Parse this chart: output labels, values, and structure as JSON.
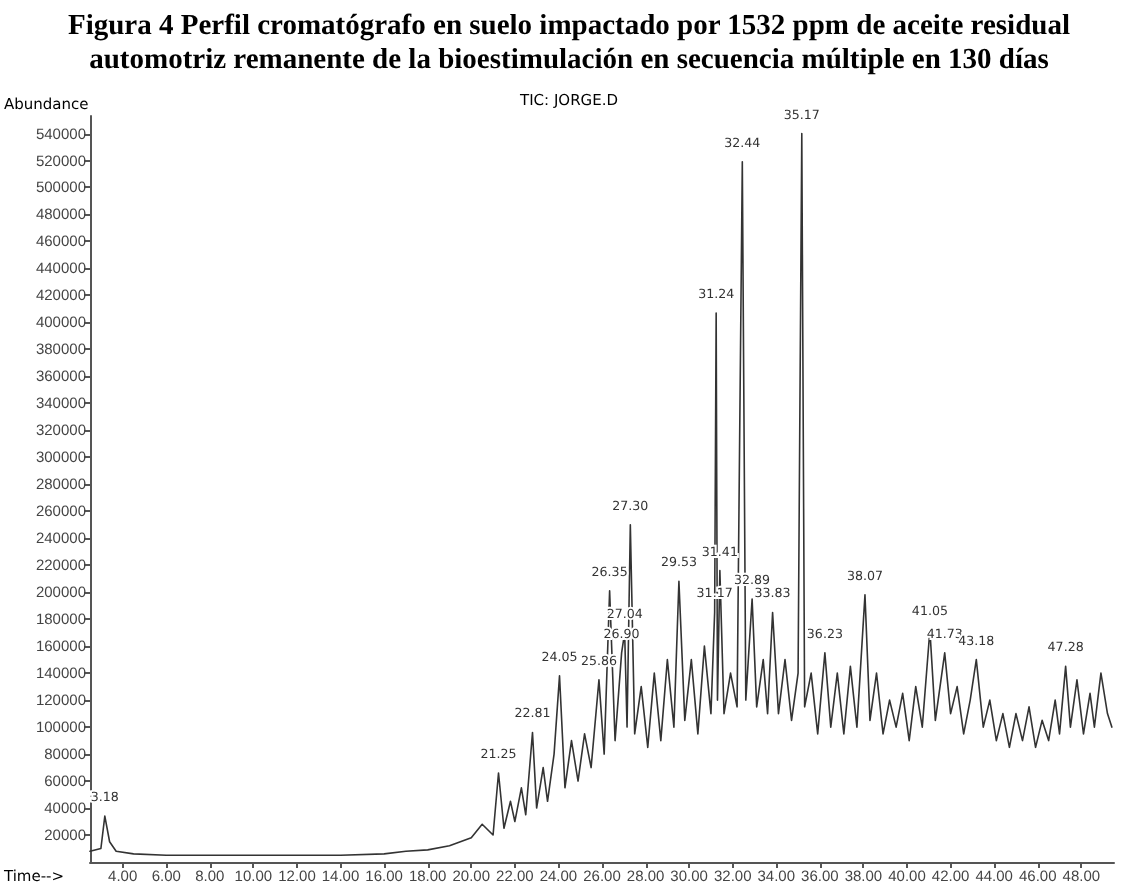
{
  "chart_data": {
    "type": "line",
    "title": "Figura 4 Perfil cromatógrafo en suelo impactado por 1532 ppm de aceite residual automotriz remanente de la bioestimulación en secuencia múltiple en 130 días",
    "xlabel": "Time-->",
    "ylabel": "Abundance",
    "x": [
      2.5,
      3.0,
      3.18,
      3.4,
      3.7,
      4.5,
      6,
      8,
      10,
      12,
      14,
      16,
      17,
      18,
      19,
      19.5,
      20,
      20.5,
      21,
      21.25,
      21.5,
      21.8,
      22.0,
      22.3,
      22.5,
      22.81,
      23.0,
      23.3,
      23.5,
      23.8,
      24.05,
      24.3,
      24.6,
      24.9,
      25.2,
      25.5,
      25.86,
      26.1,
      26.35,
      26.6,
      26.9,
      27.04,
      27.15,
      27.3,
      27.5,
      27.8,
      28.1,
      28.4,
      28.7,
      29.0,
      29.3,
      29.53,
      29.8,
      30.1,
      30.4,
      30.7,
      31.0,
      31.17,
      31.24,
      31.3,
      31.41,
      31.6,
      31.9,
      32.2,
      32.44,
      32.6,
      32.89,
      33.1,
      33.4,
      33.6,
      33.83,
      34.1,
      34.4,
      34.7,
      35.0,
      35.17,
      35.3,
      35.6,
      35.9,
      36.23,
      36.5,
      36.8,
      37.1,
      37.4,
      37.7,
      38.07,
      38.3,
      38.6,
      38.9,
      39.2,
      39.5,
      39.8,
      40.1,
      40.4,
      40.7,
      41.05,
      41.3,
      41.73,
      42.0,
      42.3,
      42.6,
      42.9,
      43.18,
      43.5,
      43.8,
      44.1,
      44.4,
      44.7,
      45.0,
      45.3,
      45.6,
      45.9,
      46.2,
      46.5,
      46.8,
      47.0,
      47.28,
      47.5,
      47.8,
      48.1,
      48.4,
      48.6,
      48.9,
      49.2,
      49.4
    ],
    "series": [
      {
        "color": "#333333",
        "values": [
          8000,
          10000,
          34000,
          15000,
          8000,
          6000,
          5000,
          5000,
          5000,
          5000,
          5000,
          6000,
          8000,
          9000,
          12000,
          15000,
          18000,
          28000,
          20000,
          66000,
          25000,
          45000,
          30000,
          55000,
          35000,
          96000,
          40000,
          70000,
          45000,
          80000,
          138000,
          55000,
          90000,
          60000,
          95000,
          70000,
          135000,
          80000,
          201000,
          90000,
          155000,
          170000,
          100000,
          250000,
          95000,
          130000,
          85000,
          140000,
          90000,
          150000,
          100000,
          208000,
          105000,
          150000,
          95000,
          160000,
          110000,
          185000,
          407000,
          120000,
          216000,
          110000,
          140000,
          115000,
          519000,
          120000,
          195000,
          115000,
          150000,
          110000,
          185000,
          110000,
          150000,
          105000,
          140000,
          540000,
          115000,
          140000,
          95000,
          155000,
          100000,
          140000,
          95000,
          145000,
          100000,
          198000,
          105000,
          140000,
          95000,
          120000,
          100000,
          125000,
          90000,
          130000,
          100000,
          172000,
          105000,
          155000,
          110000,
          130000,
          95000,
          120000,
          150000,
          100000,
          120000,
          90000,
          110000,
          85000,
          110000,
          90000,
          115000,
          85000,
          105000,
          90000,
          120000,
          95000,
          145000,
          100000,
          135000,
          95000,
          125000,
          100000,
          140000,
          110000,
          100000
        ]
      }
    ],
    "xlim": [
      2.5,
      49.5
    ],
    "xticks": [
      {
        "value": 4,
        "label": "4.00"
      },
      {
        "value": 6,
        "label": "6.00"
      },
      {
        "value": 8,
        "label": "8.00"
      },
      {
        "value": 10,
        "label": "10.00"
      },
      {
        "value": 12,
        "label": "12.00"
      },
      {
        "value": 14,
        "label": "14.00"
      },
      {
        "value": 16,
        "label": "16.00"
      },
      {
        "value": 18,
        "label": "18.00"
      },
      {
        "value": 20,
        "label": "20.00"
      },
      {
        "value": 22,
        "label": "22.00"
      },
      {
        "value": 24,
        "label": "24.00"
      },
      {
        "value": 26,
        "label": "26.00"
      },
      {
        "value": 28,
        "label": "28.00"
      },
      {
        "value": 30,
        "label": "30.00"
      },
      {
        "value": 32,
        "label": "32.00"
      },
      {
        "value": 34,
        "label": "34.00"
      },
      {
        "value": 36,
        "label": "36.00"
      },
      {
        "value": 38,
        "label": "38.00"
      },
      {
        "value": 40,
        "label": "40.00"
      },
      {
        "value": 42,
        "label": "42.00"
      },
      {
        "value": 44,
        "label": "44.00"
      },
      {
        "value": 46,
        "label": "46.00"
      },
      {
        "value": 48,
        "label": "48.00"
      }
    ],
    "ylim": [
      0,
      553000
    ],
    "yticks": [
      20000,
      40000,
      60000,
      80000,
      100000,
      120000,
      140000,
      160000,
      180000,
      200000,
      220000,
      240000,
      260000,
      280000,
      300000,
      320000,
      340000,
      360000,
      380000,
      400000,
      420000,
      440000,
      460000,
      480000,
      500000,
      520000,
      540000
    ],
    "grid": false,
    "marker": "none",
    "line_style": "solid",
    "annotations": [
      "TIC: JORGE.D",
      {
        "text": "3.18",
        "x": 3.18,
        "y": 34000
      },
      {
        "text": "21.25",
        "x": 21.25,
        "y": 66000
      },
      {
        "text": "22.81",
        "x": 22.81,
        "y": 96000
      },
      {
        "text": "24.05",
        "x": 24.05,
        "y": 138000
      },
      {
        "text": "25.86",
        "x": 25.86,
        "y": 135000
      },
      {
        "text": "26.35",
        "x": 26.35,
        "y": 201000
      },
      {
        "text": "26.90",
        "x": 26.9,
        "y": 155000
      },
      {
        "text": "27.04",
        "x": 27.04,
        "y": 170000
      },
      {
        "text": "27.30",
        "x": 27.3,
        "y": 250000
      },
      {
        "text": "29.53",
        "x": 29.53,
        "y": 208000
      },
      {
        "text": "31.17",
        "x": 31.17,
        "y": 185000
      },
      {
        "text": "31.24",
        "x": 31.24,
        "y": 407000
      },
      {
        "text": "31.41",
        "x": 31.41,
        "y": 216000
      },
      {
        "text": "32.44",
        "x": 32.44,
        "y": 519000
      },
      {
        "text": "32.89",
        "x": 32.89,
        "y": 195000
      },
      {
        "text": "33.83",
        "x": 33.83,
        "y": 185000
      },
      {
        "text": "35.17",
        "x": 35.17,
        "y": 540000
      },
      {
        "text": "36.23",
        "x": 36.23,
        "y": 155000
      },
      {
        "text": "38.07",
        "x": 38.07,
        "y": 198000
      },
      {
        "text": "41.05",
        "x": 41.05,
        "y": 172000
      },
      {
        "text": "41.73",
        "x": 41.73,
        "y": 155000
      },
      {
        "text": "43.18",
        "x": 43.18,
        "y": 150000
      },
      {
        "text": "47.28",
        "x": 47.28,
        "y": 145000
      }
    ]
  }
}
